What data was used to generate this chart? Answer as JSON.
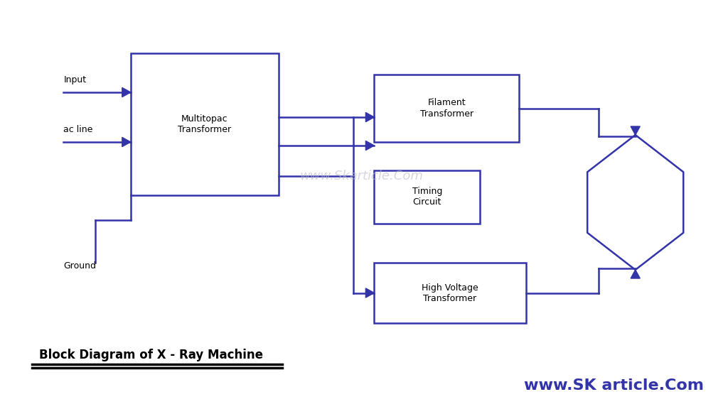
{
  "bg_color": "#ffffff",
  "line_color": "#3333aa",
  "text_color": "#000000",
  "title": "Block Diagram of X - Ray Machine",
  "watermark_br": "www.SK article.Com",
  "watermark_center": "www.Skarticle.Com",
  "font_size_block": 9,
  "font_size_label": 9,
  "font_size_title": 12,
  "font_size_watermark_br": 16,
  "font_size_watermark_center": 13
}
